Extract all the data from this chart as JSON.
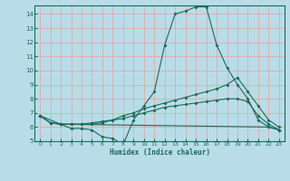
{
  "xlabel": "Humidex (Indice chaleur)",
  "bg_color": "#b8dde8",
  "grid_color_major": "#e8a0a0",
  "line_color": "#1a6b58",
  "xlim": [
    -0.5,
    23.5
  ],
  "ylim": [
    5,
    14.6
  ],
  "yticks": [
    5,
    6,
    7,
    8,
    9,
    10,
    11,
    12,
    13,
    14
  ],
  "xticks": [
    0,
    1,
    2,
    3,
    4,
    5,
    6,
    7,
    8,
    9,
    10,
    11,
    12,
    13,
    14,
    15,
    16,
    17,
    18,
    19,
    20,
    21,
    22,
    23
  ],
  "line1_x": [
    0,
    1,
    2,
    3,
    4,
    5,
    6,
    7,
    8,
    9,
    10,
    11,
    12,
    13,
    14,
    15,
    16,
    17,
    18,
    19,
    20,
    21,
    22,
    23
  ],
  "line1_y": [
    6.8,
    6.3,
    6.2,
    5.9,
    5.9,
    5.8,
    5.3,
    5.2,
    4.75,
    6.5,
    7.5,
    8.5,
    11.8,
    14.0,
    14.2,
    14.5,
    14.5,
    11.8,
    10.2,
    9.0,
    8.0,
    6.5,
    6.0,
    5.8
  ],
  "line2_x": [
    0,
    1,
    2,
    3,
    4,
    5,
    6,
    7,
    8,
    9,
    10,
    11,
    12,
    13,
    14,
    15,
    16,
    17,
    18,
    19,
    20,
    21,
    22,
    23
  ],
  "line2_y": [
    6.8,
    6.3,
    6.2,
    6.2,
    6.2,
    6.2,
    6.3,
    6.5,
    6.8,
    7.0,
    7.3,
    7.5,
    7.7,
    7.9,
    8.1,
    8.3,
    8.5,
    8.7,
    9.0,
    9.5,
    8.5,
    7.5,
    6.5,
    6.0
  ],
  "line3_x": [
    0,
    1,
    2,
    3,
    4,
    5,
    6,
    7,
    8,
    9,
    10,
    11,
    12,
    13,
    14,
    15,
    16,
    17,
    18,
    19,
    20,
    21,
    22,
    23
  ],
  "line3_y": [
    6.8,
    6.3,
    6.2,
    6.2,
    6.2,
    6.3,
    6.4,
    6.5,
    6.6,
    6.8,
    7.0,
    7.2,
    7.4,
    7.5,
    7.6,
    7.7,
    7.8,
    7.9,
    8.0,
    8.0,
    7.8,
    6.8,
    6.2,
    5.8
  ],
  "line4_x": [
    0,
    2,
    22,
    23
  ],
  "line4_y": [
    6.8,
    6.2,
    6.0,
    5.8
  ]
}
